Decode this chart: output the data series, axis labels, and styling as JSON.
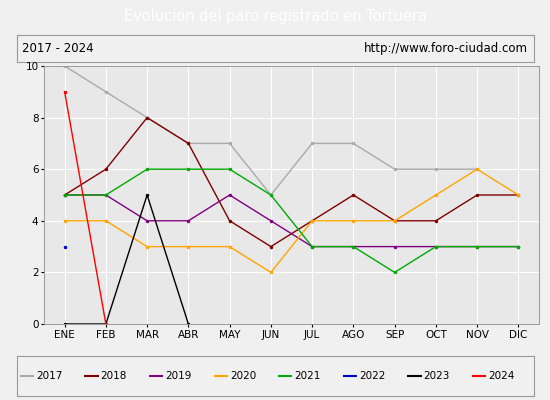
{
  "title": "Evolucion del paro registrado en Tortuera",
  "subtitle_left": "2017 - 2024",
  "subtitle_right": "http://www.foro-ciudad.com",
  "months": [
    "ENE",
    "FEB",
    "MAR",
    "ABR",
    "MAY",
    "JUN",
    "JUL",
    "AGO",
    "SEP",
    "OCT",
    "NOV",
    "DIC"
  ],
  "ylim": [
    0,
    10
  ],
  "yticks": [
    0,
    2,
    4,
    6,
    8,
    10
  ],
  "series": {
    "2017": {
      "color": "#aaaaaa",
      "data": [
        10,
        9,
        8,
        7,
        7,
        5,
        7,
        7,
        6,
        6,
        6,
        null
      ]
    },
    "2018": {
      "color": "#800000",
      "data": [
        5,
        6,
        8,
        7,
        4,
        3,
        4,
        5,
        4,
        4,
        5,
        5
      ]
    },
    "2019": {
      "color": "#800080",
      "data": [
        5,
        5,
        4,
        4,
        5,
        4,
        3,
        3,
        3,
        3,
        3,
        3
      ]
    },
    "2020": {
      "color": "#ffa500",
      "data": [
        4,
        4,
        3,
        3,
        3,
        2,
        4,
        4,
        4,
        5,
        6,
        5
      ]
    },
    "2021": {
      "color": "#00aa00",
      "data": [
        5,
        5,
        6,
        6,
        6,
        5,
        3,
        3,
        2,
        3,
        3,
        3
      ]
    },
    "2022": {
      "color": "#0000cc",
      "data": [
        3,
        null,
        null,
        null,
        null,
        null,
        null,
        null,
        null,
        null,
        null,
        null
      ]
    },
    "2023": {
      "color": "#000000",
      "data": [
        0,
        0,
        5,
        0,
        null,
        null,
        null,
        null,
        null,
        null,
        null,
        null
      ]
    },
    "2024": {
      "color": "#ff0000",
      "data": [
        9,
        0,
        null,
        null,
        null,
        null,
        null,
        null,
        null,
        null,
        null,
        null
      ]
    }
  },
  "background_color": "#f0f0f0",
  "plot_bg_color": "#e8e8e8",
  "title_bg_color": "#4472c4",
  "title_color": "#ffffff",
  "grid_color": "#ffffff",
  "legend_series_order": [
    "2017",
    "2018",
    "2019",
    "2020",
    "2021",
    "2022",
    "2023",
    "2024"
  ]
}
